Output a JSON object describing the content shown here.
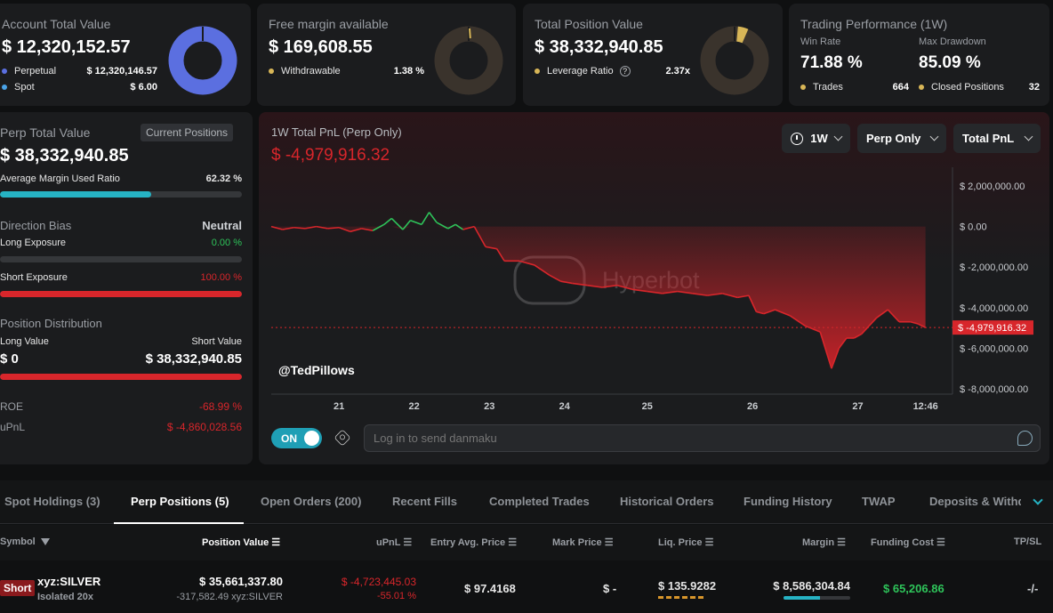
{
  "cards": {
    "account": {
      "title": "Account Total Value",
      "value": "$ 12,320,152.57",
      "rows": [
        {
          "label": "Perpetual",
          "value": "$ 12,320,146.57",
          "color": "#5b6fe0"
        },
        {
          "label": "Spot",
          "value": "$ 6.00",
          "color": "#4aa3e8"
        }
      ]
    },
    "margin": {
      "title": "Free margin available",
      "value": "$ 169,608.55",
      "row": {
        "label": "Withdrawable",
        "value": "1.38 %",
        "color": "#d8b657"
      }
    },
    "position": {
      "title": "Total Position Value",
      "value": "$ 38,332,940.85",
      "row": {
        "label": "Leverage Ratio",
        "value": "2.37x",
        "color": "#d8b657"
      }
    },
    "performance": {
      "title": "Trading Performance (1W)",
      "win_rate_label": "Win Rate",
      "win_rate": "71.88 %",
      "drawdown_label": "Max Drawdown",
      "drawdown": "85.09 %",
      "trades_label": "Trades",
      "trades": "664",
      "closed_label": "Closed Positions",
      "closed": "32",
      "dot_color": "#d8b657"
    }
  },
  "perp": {
    "title": "Perp Total Value",
    "badge": "Current Positions",
    "value": "$ 38,332,940.85",
    "margin_label": "Average Margin Used Ratio",
    "margin_value": "62.32 %",
    "margin_fraction": 0.6232,
    "direction_label": "Direction Bias",
    "direction_value": "Neutral",
    "long_label": "Long Exposure",
    "long_value": "0.00 %",
    "long_fraction": 0,
    "short_label": "Short Exposure",
    "short_value": "100.00 %",
    "short_fraction": 1,
    "dist_label": "Position Distribution",
    "long_value_label": "Long Value",
    "short_value_label": "Short Value",
    "long_amount": "$ 0",
    "short_amount": "$ 38,332,940.85",
    "roe_label": "ROE",
    "roe_value": "-68.99 %",
    "upnl_label": "uPnL",
    "upnl_value": "$ -4,860,028.56"
  },
  "pnl_chart": {
    "title": "1W Total PnL (Perp Only)",
    "value": "$ -4,979,916.32",
    "timeframe": "1W",
    "scope": "Perp Only",
    "metric": "Total PnL",
    "watermark": "Hyperbot",
    "handle": "@TedPillows",
    "toggle_label": "ON",
    "danmaku_placeholder": "Log in to send danmaku"
  },
  "chart_data": {
    "type": "area",
    "title": "1W Total PnL (Perp Only)",
    "y_ticks": [
      "$ 2,000,000.00",
      "$ 0.00",
      "$ -2,000,000.00",
      "$ -4,000,000.00",
      "$ -6,000,000.00",
      "$ -8,000,000.00"
    ],
    "y_tick_values": [
      2000000,
      0,
      -2000000,
      -4000000,
      -6000000,
      -8000000
    ],
    "x_ticks": [
      "21",
      "22",
      "23",
      "24",
      "25",
      "26",
      "27",
      "12:46"
    ],
    "x_tick_positions": [
      0.9,
      1.9,
      2.9,
      3.9,
      5.0,
      6.4,
      7.8,
      8.7
    ],
    "ylim": [
      -8000000,
      2000000
    ],
    "xlim": [
      0,
      9.0
    ],
    "current_value": -4979916.32,
    "current_label": "$ -4,979,916.32",
    "series": [
      {
        "x": [
          0,
          0.15,
          0.3,
          0.45,
          0.6,
          0.75,
          0.9,
          1.05,
          1.2,
          1.35,
          1.5,
          1.6,
          1.75,
          1.85,
          2.0,
          2.1,
          2.2,
          2.35,
          2.45,
          2.55,
          2.7,
          2.85,
          3.0,
          3.1,
          3.3,
          3.5,
          3.7,
          3.85,
          4.0,
          4.2,
          4.4,
          4.6,
          4.8,
          5.0,
          5.2,
          5.4,
          5.6,
          5.8,
          6.0,
          6.2,
          6.35,
          6.45,
          6.55,
          6.7,
          6.9,
          7.1,
          7.3,
          7.45,
          7.55,
          7.65,
          7.75,
          7.85,
          7.95,
          8.05,
          8.2,
          8.35,
          8.5,
          8.6,
          8.7
        ],
        "y": [
          0,
          -150000,
          -50000,
          -100000,
          0,
          -100000,
          -50000,
          -250000,
          -100000,
          -200000,
          100000,
          400000,
          -150000,
          300000,
          100000,
          700000,
          200000,
          -100000,
          100000,
          -150000,
          0,
          -1000000,
          -1100000,
          -1700000,
          -1700000,
          -1900000,
          -2400000,
          -2700000,
          -2800000,
          -2900000,
          -3000000,
          -2900000,
          -3100000,
          -3200000,
          -3300000,
          -3200000,
          -3300000,
          -3400000,
          -3300000,
          -3500000,
          -3400000,
          -4200000,
          -4300000,
          -4100000,
          -4400000,
          -4900000,
          -5200000,
          -7000000,
          -6000000,
          -5500000,
          -5500000,
          -5300000,
          -4900000,
          -4500000,
          -4100000,
          -4700000,
          -4700000,
          -4800000,
          -4980000
        ]
      }
    ],
    "line_color_up": "#2ec45a",
    "line_color_down": "#d8262b"
  },
  "tabs": [
    {
      "label": "Spot Holdings (3)",
      "active": false
    },
    {
      "label": "Perp Positions (5)",
      "active": true
    },
    {
      "label": "Open Orders (200)",
      "active": false
    },
    {
      "label": "Recent Fills",
      "active": false
    },
    {
      "label": "Completed Trades",
      "active": false
    },
    {
      "label": "Historical Orders",
      "active": false
    },
    {
      "label": "Funding History",
      "active": false
    },
    {
      "label": "TWAP",
      "active": false
    },
    {
      "label": "Deposits & Withdr",
      "active": false
    }
  ],
  "table": {
    "headers": [
      "Symbol",
      "Position Value",
      "uPnL",
      "Entry Avg. Price",
      "Mark Price",
      "Liq. Price",
      "Margin",
      "Funding Cost",
      "TP/SL"
    ],
    "row": {
      "side": "Short",
      "symbol": "xyz:SILVER",
      "mode": "Isolated 20x",
      "position_value": "$ 35,661,337.80",
      "position_size": "-317,582.49 xyz:SILVER",
      "upnl": "$ -4,723,445.03",
      "upnl_pct": "-55.01 %",
      "entry": "$ 97.4168",
      "mark": "$ -",
      "liq": "$ 135.9282",
      "margin": "$ 8,586,304.84",
      "margin_fraction": 0.55,
      "funding": "$ 65,206.86",
      "tpsl": "-/-"
    }
  }
}
